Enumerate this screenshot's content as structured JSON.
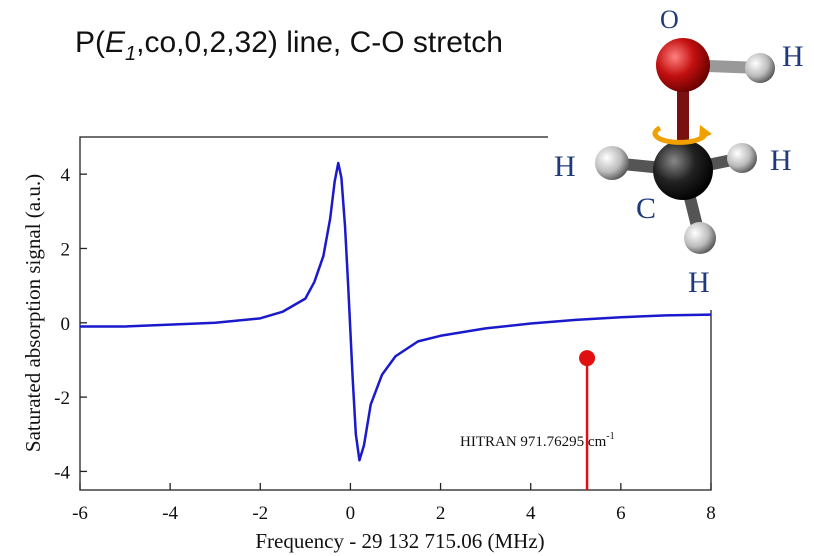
{
  "chart_data": {
    "type": "line",
    "title_parts": [
      "P(",
      "E",
      "1",
      ",co,0,2,32) line, C-O stretch"
    ],
    "x_label": "Frequency - 29 132 715.06 (MHz)",
    "y_label": "Saturated absorption signal (a.u.)",
    "x": [
      -6,
      -5,
      -4,
      -3,
      -2,
      -1.5,
      -1,
      -0.8,
      -0.6,
      -0.45,
      -0.35,
      -0.27,
      -0.2,
      -0.12,
      -0.05,
      0.05,
      0.12,
      0.2,
      0.3,
      0.45,
      0.7,
      1,
      1.5,
      2,
      3,
      4,
      5,
      6,
      7,
      8
    ],
    "series": [
      {
        "color": "#1a1acc",
        "values": [
          -0.1,
          -0.1,
          -0.05,
          0.0,
          0.12,
          0.3,
          0.65,
          1.1,
          1.8,
          2.8,
          3.8,
          4.3,
          3.9,
          2.6,
          1.0,
          -1.5,
          -3.0,
          -3.7,
          -3.3,
          -2.2,
          -1.4,
          -0.9,
          -0.5,
          -0.35,
          -0.15,
          -0.02,
          0.08,
          0.15,
          0.2,
          0.22
        ]
      }
    ],
    "reference": {
      "x": 5.25,
      "value": -0.95,
      "color": "#e01010",
      "label": "HITRAN 971.76295 cm",
      "label_sup": "-1"
    },
    "xlim": [
      -6,
      8
    ],
    "ylim": [
      -4.5,
      5
    ],
    "xticks": [
      -6,
      -4,
      -2,
      0,
      2,
      4,
      6,
      8
    ],
    "yticks": [
      -4,
      -2,
      0,
      2,
      4
    ]
  },
  "molecule": {
    "labels": [
      "O",
      "H",
      "H",
      "H",
      "C",
      "H"
    ]
  }
}
